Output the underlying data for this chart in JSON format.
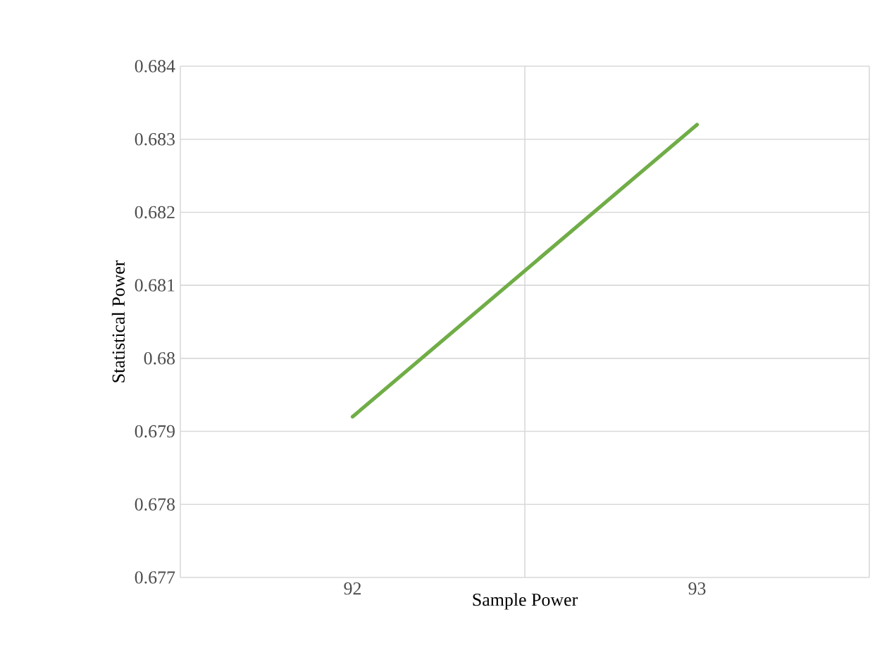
{
  "chart_data": {
    "type": "line",
    "xlabel": "Sample Power",
    "ylabel": "Statistical Power",
    "categories": [
      "92",
      "93"
    ],
    "series": [
      {
        "color": "#70ad47",
        "values": [
          0.6792,
          0.6832
        ]
      }
    ],
    "ylim": [
      0.677,
      0.684
    ],
    "yticks": [
      0.677,
      0.678,
      0.679,
      0.68,
      0.681,
      0.682,
      0.683,
      0.684
    ],
    "grid": true,
    "marker": "none",
    "line_style": "solid"
  }
}
